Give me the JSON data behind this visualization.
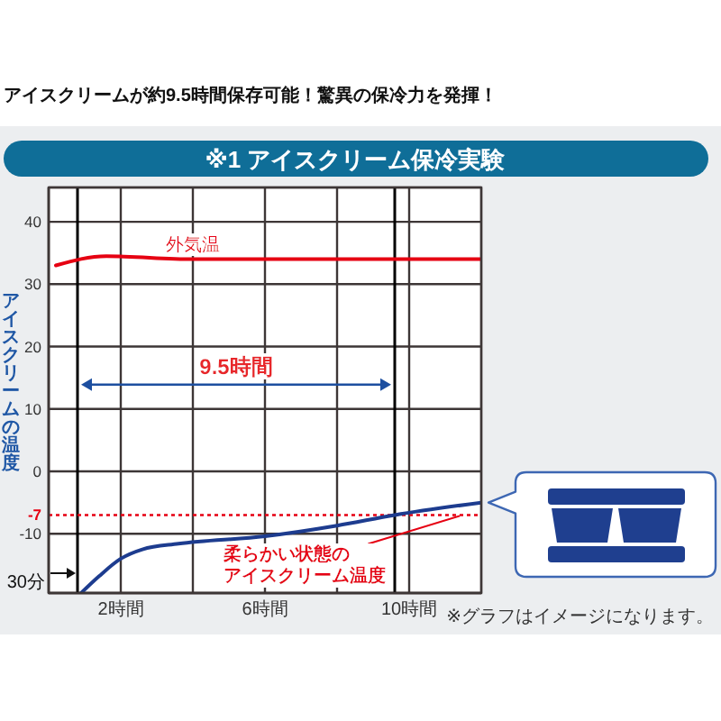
{
  "chart_data": {
    "type": "line",
    "title": "アイスクリームが約9.5時間保存可能！驚異の保冷力を発揮！",
    "subtitle": "※1 アイスクリーム保冷実験",
    "ylabel": "アイスクリームの温度",
    "xlim": [
      0,
      12
    ],
    "xticks": [
      {
        "value": 2,
        "label": "2時間"
      },
      {
        "value": 4,
        "label": null
      },
      {
        "value": 6,
        "label": "6時間"
      },
      {
        "value": 8,
        "label": null
      },
      {
        "value": 10,
        "label": "10時間"
      }
    ],
    "ylim": [
      -19.5,
      45.5
    ],
    "yticks": [
      -10,
      0,
      10,
      20,
      30,
      40
    ],
    "grid": true,
    "series": [
      {
        "name": "外気温",
        "color": "#e60012",
        "x": [
          0.2,
          1.6,
          4,
          12
        ],
        "values": [
          33,
          34.5,
          34,
          34
        ]
      },
      {
        "color": "#1d3c8f",
        "x": [
          0.9,
          1.4,
          2,
          2.6,
          3.6,
          6,
          8,
          9.6,
          12
        ],
        "values": [
          -19.5,
          -16.8,
          -14,
          -12.5,
          -11.6,
          -10.4,
          -8.7,
          -7,
          -5
        ]
      }
    ],
    "ref_lines": [
      {
        "axis": "x",
        "value": 0.8,
        "label": "30分",
        "color": "#000000"
      },
      {
        "axis": "x",
        "value": 9.6,
        "color": "#000000"
      },
      {
        "axis": "y",
        "value": -7,
        "label": "-7",
        "color": "#e60012",
        "line_style": "dotted"
      }
    ],
    "annotations": [
      "9.5時間",
      {
        "text": "柔らかい状態のアイスクリーム温度",
        "x": 11.4,
        "y": -7
      },
      "※グラフはイメージになります。"
    ]
  }
}
